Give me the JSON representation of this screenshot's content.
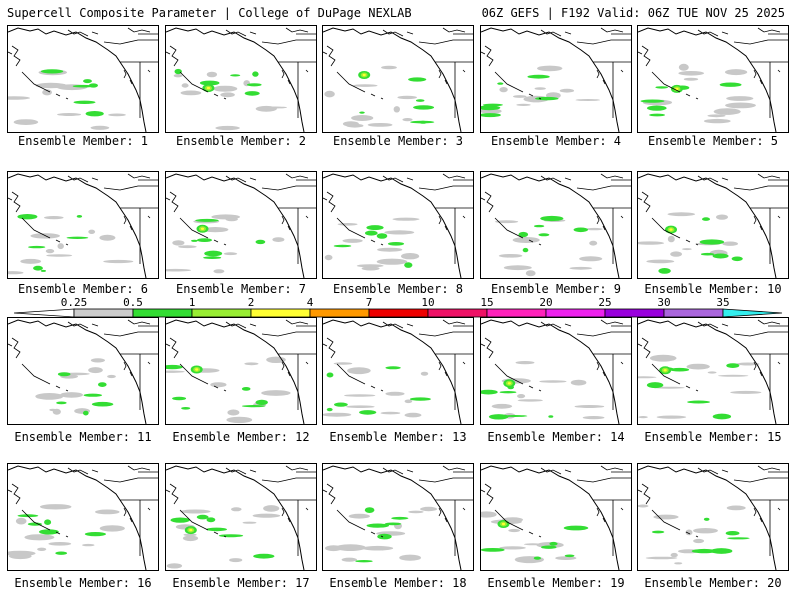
{
  "header": {
    "left": "Supercell Composite Parameter | College of DuPage NEXLAB",
    "right": "06Z GEFS | F192 Valid: 06Z TUE NOV 25 2025"
  },
  "member_label_prefix": "Ensemble Member: ",
  "members": [
    1,
    2,
    3,
    4,
    5,
    6,
    7,
    8,
    9,
    10,
    11,
    12,
    13,
    14,
    15,
    16,
    17,
    18,
    19,
    20
  ],
  "colorbar": {
    "labels": [
      "0.25",
      "0.5",
      "1",
      "2",
      "4",
      "7",
      "10",
      "15",
      "20",
      "25",
      "30",
      "35"
    ],
    "colors": [
      "#cccccc",
      "#33dd33",
      "#99ee33",
      "#ffff33",
      "#ff9900",
      "#ee0000",
      "#ee1166",
      "#ff22bb",
      "#ee22ee",
      "#9900dd",
      "#aa66dd",
      "#33eeee"
    ]
  },
  "map_colors": {
    "land_outline": "#000000",
    "low": "#c8c8c8",
    "green": "#33dd33",
    "lightgreen": "#99ee33",
    "yellow": "#ffff33"
  }
}
